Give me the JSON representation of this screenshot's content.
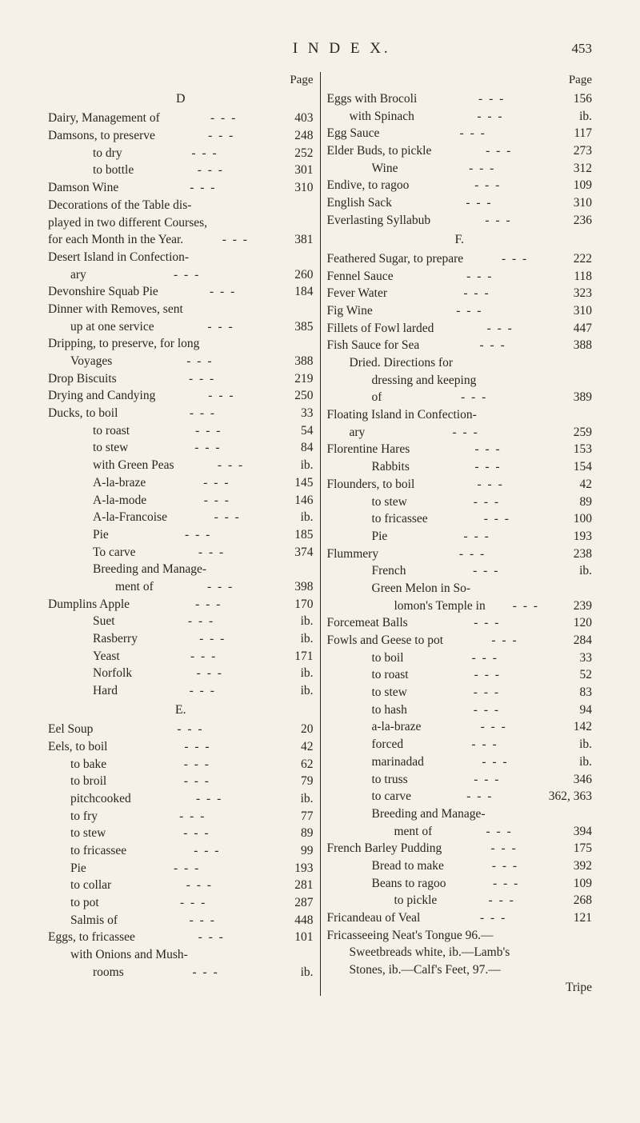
{
  "header": {
    "title": "I N D E X.",
    "pagenum": "453",
    "col_label": "Page"
  },
  "left": [
    {
      "type": "section",
      "text": "D"
    },
    {
      "label": "Dairy, Management of",
      "page": "403",
      "indent": 0
    },
    {
      "label": "Damsons, to preserve",
      "page": "248",
      "indent": 0
    },
    {
      "label": "to dry",
      "page": "252",
      "indent": 2
    },
    {
      "label": "to bottle",
      "page": "301",
      "indent": 2
    },
    {
      "label": "Damson Wine",
      "page": "310",
      "indent": 0
    },
    {
      "label": "Decorations of the Table dis-",
      "indent": 0,
      "nobreak": true
    },
    {
      "label": "played in two different Courses,",
      "indent": 0,
      "nobreak": true
    },
    {
      "label": "for each Month in the Year.",
      "page": "381",
      "indent": 0
    },
    {
      "label": "Desert Island in Confection-",
      "indent": 0,
      "nobreak": true
    },
    {
      "label": "ary",
      "page": "260",
      "indent": 1
    },
    {
      "label": "Devonshire Squab Pie",
      "page": "184",
      "indent": 0
    },
    {
      "label": "Dinner with Removes, sent",
      "indent": 0,
      "nobreak": true
    },
    {
      "label": "up at one service",
      "page": "385",
      "indent": 1
    },
    {
      "label": "Dripping, to preserve, for long",
      "indent": 0,
      "nobreak": true
    },
    {
      "label": "Voyages",
      "page": "388",
      "indent": 1
    },
    {
      "label": "Drop Biscuits",
      "page": "219",
      "indent": 0
    },
    {
      "label": "Drying and Candying",
      "page": "250",
      "indent": 0
    },
    {
      "label": "Ducks, to boil",
      "page": "33",
      "indent": 0
    },
    {
      "label": "to roast",
      "page": "54",
      "indent": 2
    },
    {
      "label": "to stew",
      "page": "84",
      "indent": 2
    },
    {
      "label": "with Green Peas",
      "page": "ib.",
      "indent": 2
    },
    {
      "label": "A-la-braze",
      "page": "145",
      "indent": 2
    },
    {
      "label": "A-la-mode",
      "page": "146",
      "indent": 2
    },
    {
      "label": "A-la-Francoise",
      "page": "ib.",
      "indent": 2
    },
    {
      "label": "Pie",
      "page": "185",
      "indent": 2
    },
    {
      "label": "To carve",
      "page": "374",
      "indent": 2
    },
    {
      "label": "Breeding and Manage-",
      "indent": 2,
      "nobreak": true
    },
    {
      "label": "ment of",
      "page": "398",
      "indent": 3
    },
    {
      "label": "Dumplins Apple",
      "page": "170",
      "indent": 0
    },
    {
      "label": "Suet",
      "page": "ib.",
      "indent": 2
    },
    {
      "label": "Rasberry",
      "page": "ib.",
      "indent": 2
    },
    {
      "label": "Yeast",
      "page": "171",
      "indent": 2
    },
    {
      "label": "Norfolk",
      "page": "ib.",
      "indent": 2
    },
    {
      "label": "Hard",
      "page": "ib.",
      "indent": 2
    },
    {
      "type": "section",
      "text": "E."
    },
    {
      "label": "Eel Soup",
      "page": "20",
      "indent": 0
    },
    {
      "label": "Eels, to boil",
      "page": "42",
      "indent": 0
    },
    {
      "label": "to bake",
      "page": "62",
      "indent": 1
    },
    {
      "label": "to broil",
      "page": "79",
      "indent": 1
    },
    {
      "label": "pitchcooked",
      "page": "ib.",
      "indent": 1
    },
    {
      "label": "to fry",
      "page": "77",
      "indent": 1
    },
    {
      "label": "to stew",
      "page": "89",
      "indent": 1
    },
    {
      "label": "to fricassee",
      "page": "99",
      "indent": 1
    },
    {
      "label": "Pie",
      "page": "193",
      "indent": 1
    },
    {
      "label": "to collar",
      "page": "281",
      "indent": 1
    },
    {
      "label": "to pot",
      "page": "287",
      "indent": 1
    },
    {
      "label": "Salmis of",
      "page": "448",
      "indent": 1
    },
    {
      "label": "Eggs, to fricassee",
      "page": "101",
      "indent": 0
    },
    {
      "label": "with Onions and Mush-",
      "indent": 1,
      "nobreak": true
    },
    {
      "label": "rooms",
      "page": "ib.",
      "indent": 2
    }
  ],
  "right": [
    {
      "label": "Eggs with Brocoli",
      "page": "156",
      "indent": 0
    },
    {
      "label": "with Spinach",
      "page": "ib.",
      "indent": 1
    },
    {
      "label": "Egg Sauce",
      "page": "117",
      "indent": 0
    },
    {
      "label": "Elder Buds, to pickle",
      "page": "273",
      "indent": 0
    },
    {
      "label": "Wine",
      "page": "312",
      "indent": 2
    },
    {
      "label": "Endive, to ragoo",
      "page": "109",
      "indent": 0
    },
    {
      "label": "English Sack",
      "page": "310",
      "indent": 0
    },
    {
      "label": "Everlasting Syllabub",
      "page": "236",
      "indent": 0
    },
    {
      "type": "section",
      "text": "F."
    },
    {
      "label": "Feathered Sugar, to prepare",
      "page": "222",
      "indent": 0
    },
    {
      "label": "Fennel Sauce",
      "page": "118",
      "indent": 0
    },
    {
      "label": "Fever Water",
      "page": "323",
      "indent": 0
    },
    {
      "label": "Fig Wine",
      "page": "310",
      "indent": 0
    },
    {
      "label": "Fillets of Fowl larded",
      "page": "447",
      "indent": 0
    },
    {
      "label": "Fish Sauce for Sea",
      "page": "388",
      "indent": 0
    },
    {
      "label": "Dried.   Directions for",
      "indent": 1,
      "nobreak": true
    },
    {
      "label": "dressing and keeping",
      "indent": 2,
      "nobreak": true
    },
    {
      "label": "of",
      "page": "389",
      "indent": 2
    },
    {
      "label": "Floating Island in Confection-",
      "indent": 0,
      "nobreak": true
    },
    {
      "label": "ary",
      "page": "259",
      "indent": 1
    },
    {
      "label": "Florentine Hares",
      "page": "153",
      "indent": 0
    },
    {
      "label": "Rabbits",
      "page": "154",
      "indent": 2
    },
    {
      "label": "Flounders, to boil",
      "page": "42",
      "indent": 0
    },
    {
      "label": "to stew",
      "page": "89",
      "indent": 2
    },
    {
      "label": "to fricassee",
      "page": "100",
      "indent": 2
    },
    {
      "label": "Pie",
      "page": "193",
      "indent": 2
    },
    {
      "label": "Flummery",
      "page": "238",
      "indent": 0
    },
    {
      "label": "French",
      "page": "ib.",
      "indent": 2
    },
    {
      "label": "Green Melon in So-",
      "indent": 2,
      "nobreak": true
    },
    {
      "label": "lomon's Temple in",
      "page": "239",
      "indent": 3
    },
    {
      "label": "Forcemeat Balls",
      "page": "120",
      "indent": 0
    },
    {
      "label": "Fowls and Geese to pot",
      "page": "284",
      "indent": 0
    },
    {
      "label": "to boil",
      "page": "33",
      "indent": 2
    },
    {
      "label": "to roast",
      "page": "52",
      "indent": 2
    },
    {
      "label": "to stew",
      "page": "83",
      "indent": 2
    },
    {
      "label": "to hash",
      "page": "94",
      "indent": 2
    },
    {
      "label": "a-la-braze",
      "page": "142",
      "indent": 2
    },
    {
      "label": "forced",
      "page": "ib.",
      "indent": 2
    },
    {
      "label": "marinadad",
      "page": "ib.",
      "indent": 2
    },
    {
      "label": "to truss",
      "page": "346",
      "indent": 2
    },
    {
      "label": "to carve",
      "page": "362, 363",
      "indent": 2
    },
    {
      "label": "Breeding and Manage-",
      "indent": 2,
      "nobreak": true
    },
    {
      "label": "ment of",
      "page": "394",
      "indent": 3
    },
    {
      "label": "French Barley Pudding",
      "page": "175",
      "indent": 0
    },
    {
      "label": "Bread to make",
      "page": "392",
      "indent": 2
    },
    {
      "label": "Beans to ragoo",
      "page": "109",
      "indent": 2
    },
    {
      "label": "to pickle",
      "page": "268",
      "indent": 3
    },
    {
      "label": "Fricandeau of Veal",
      "page": "121",
      "indent": 0
    },
    {
      "label": "Fricasseeing Neat's Tongue 96.—",
      "indent": 0,
      "nobreak": true
    },
    {
      "label": "Sweetbreads white, ib.—Lamb's",
      "indent": 1,
      "nobreak": true
    },
    {
      "label": "Stones, ib.—Calf's Feet, 97.—",
      "indent": 1,
      "nobreak": true
    },
    {
      "label": "Tripe",
      "indent": 3,
      "nobreak": true,
      "right": true
    }
  ]
}
